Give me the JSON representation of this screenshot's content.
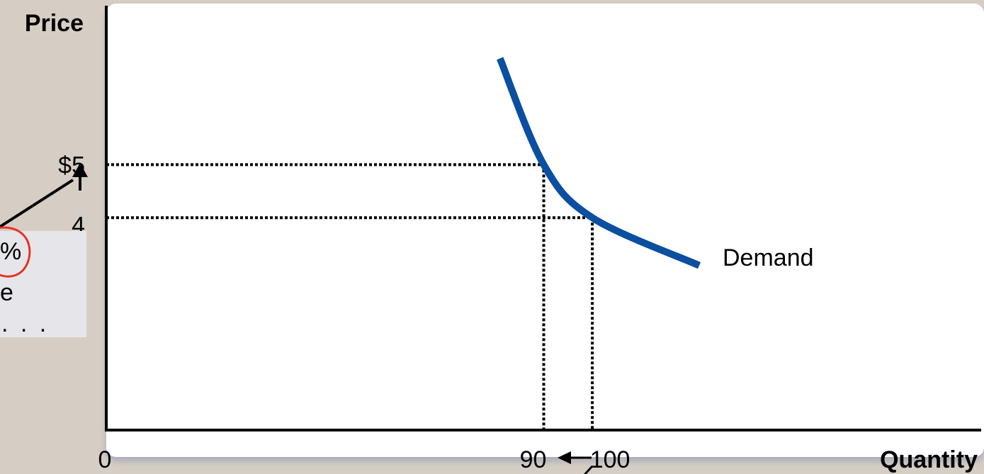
{
  "chart_data": {
    "type": "line",
    "title": "",
    "xlabel": "Quantity",
    "ylabel": "Price",
    "x_origin_label": "0",
    "x_tick_labels": [
      "90",
      "100"
    ],
    "y_tick_labels": [
      "$5",
      "4"
    ],
    "series": [
      {
        "name": "Demand",
        "color": "#0a4fa0",
        "points": [
          {
            "x": 81,
            "y": 7.0
          },
          {
            "x": 90,
            "y": 5
          },
          {
            "x": 100,
            "y": 4
          },
          {
            "x": 122,
            "y": 3.1
          }
        ]
      }
    ],
    "reference_points": [
      {
        "x": 90,
        "y": 5
      },
      {
        "x": 100,
        "y": 4
      }
    ],
    "xlim": [
      0,
      180
    ],
    "ylim": [
      0,
      7.5
    ],
    "grid": false,
    "colors": {
      "demand_curve": "#0a4fa0",
      "background": "#d6cec4",
      "plot_area": "#ffffff",
      "callout_box": "#e6e6ea",
      "highlight_circle": "#e53323"
    }
  },
  "callout": {
    "lines": [
      "%",
      "e",
      ". . ."
    ]
  }
}
